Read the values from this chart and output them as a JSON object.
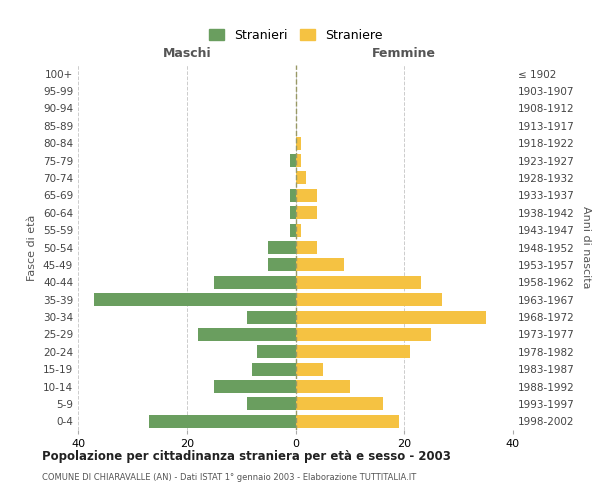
{
  "age_groups": [
    "0-4",
    "5-9",
    "10-14",
    "15-19",
    "20-24",
    "25-29",
    "30-34",
    "35-39",
    "40-44",
    "45-49",
    "50-54",
    "55-59",
    "60-64",
    "65-69",
    "70-74",
    "75-79",
    "80-84",
    "85-89",
    "90-94",
    "95-99",
    "100+"
  ],
  "birth_years": [
    "1998-2002",
    "1993-1997",
    "1988-1992",
    "1983-1987",
    "1978-1982",
    "1973-1977",
    "1968-1972",
    "1963-1967",
    "1958-1962",
    "1953-1957",
    "1948-1952",
    "1943-1947",
    "1938-1942",
    "1933-1937",
    "1928-1932",
    "1923-1927",
    "1918-1922",
    "1913-1917",
    "1908-1912",
    "1903-1907",
    "≤ 1902"
  ],
  "maschi": [
    27,
    9,
    15,
    8,
    7,
    18,
    9,
    37,
    15,
    5,
    5,
    1,
    1,
    1,
    0,
    1,
    0,
    0,
    0,
    0,
    0
  ],
  "femmine": [
    19,
    16,
    10,
    5,
    21,
    25,
    35,
    27,
    23,
    9,
    4,
    1,
    4,
    4,
    2,
    1,
    1,
    0,
    0,
    0,
    0
  ],
  "color_maschi": "#6a9e5f",
  "color_femmine": "#f5c242",
  "title": "Popolazione per cittadinanza straniera per età e sesso - 2003",
  "subtitle": "COMUNE DI CHIARAVALLE (AN) - Dati ISTAT 1° gennaio 2003 - Elaborazione TUTTITALIA.IT",
  "xlabel_left": "Maschi",
  "xlabel_right": "Femmine",
  "ylabel_left": "Fasce di età",
  "ylabel_right": "Anni di nascita",
  "legend_maschi": "Stranieri",
  "legend_femmine": "Straniere",
  "xlim": 40,
  "background_color": "#ffffff"
}
